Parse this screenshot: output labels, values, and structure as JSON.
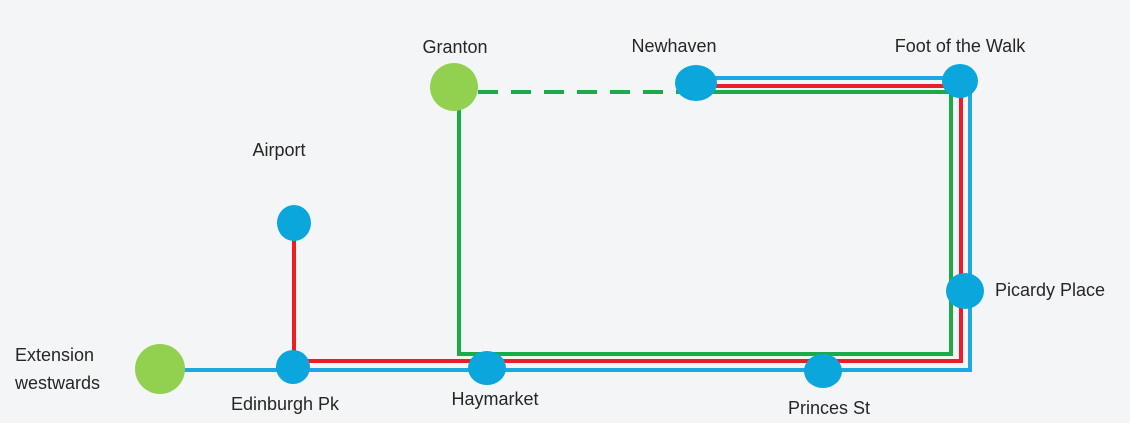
{
  "colors": {
    "background": "#f4f5f6",
    "line_blue": "#1fa8e0",
    "line_red": "#ee1c25",
    "line_green": "#1aaa4a",
    "stop_blue": "#0aa6dc",
    "stop_green": "#92d050"
  },
  "stations": {
    "granton": "Granton",
    "newhaven": "Newhaven",
    "foot_of_the_walk": "Foot of the Walk",
    "airport": "Airport",
    "picardy_place": "Picardy Place",
    "extension_line1": "Extension",
    "extension_line2": "westwards",
    "edinburgh_pk": "Edinburgh Pk",
    "haymarket": "Haymarket",
    "princes_st": "Princes St"
  }
}
